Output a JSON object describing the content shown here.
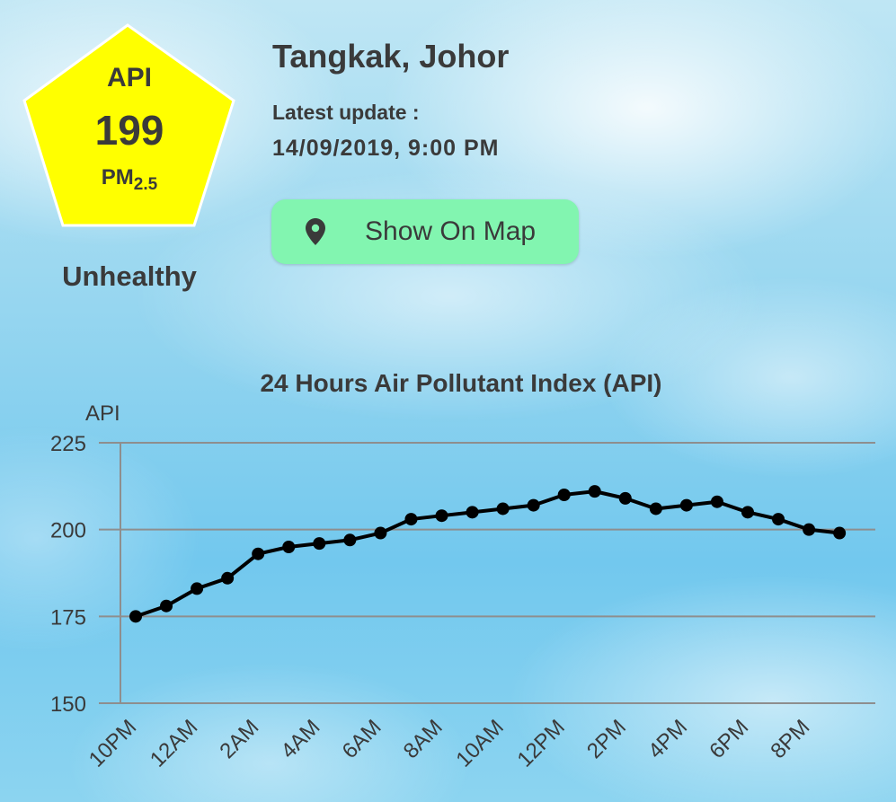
{
  "location": "Tangkak, Johor",
  "update_label": "Latest update :",
  "update_time": "14/09/2019, 9:00 PM",
  "badge": {
    "label": "API",
    "value": "199",
    "pollutant": "PM",
    "pollutant_sub": "2.5",
    "color": "#ffff00"
  },
  "status": "Unhealthy",
  "map_button": {
    "label": "Show On Map",
    "icon": "map-pin-icon",
    "color": "#82f5b0"
  },
  "chart_data": {
    "type": "line",
    "title": "24 Hours Air Pollutant Index (API)",
    "ylabel": "API",
    "xlabel": "",
    "ylim": [
      150,
      225
    ],
    "yticks": [
      150,
      175,
      200,
      225
    ],
    "grid": true,
    "x": [
      "10PM",
      "11PM",
      "12AM",
      "1AM",
      "2AM",
      "3AM",
      "4AM",
      "5AM",
      "6AM",
      "7AM",
      "8AM",
      "9AM",
      "10AM",
      "11AM",
      "12PM",
      "1PM",
      "2PM",
      "3PM",
      "4PM",
      "5PM",
      "6PM",
      "7PM",
      "8PM",
      "9PM"
    ],
    "xtick_labels": [
      "10PM",
      "12AM",
      "2AM",
      "4AM",
      "6AM",
      "8AM",
      "10AM",
      "12PM",
      "2PM",
      "4PM",
      "6PM",
      "8PM"
    ],
    "series": [
      {
        "values": [
          175,
          178,
          183,
          186,
          193,
          195,
          196,
          197,
          199,
          203,
          204,
          205,
          206,
          207,
          210,
          211,
          209,
          206,
          207,
          208,
          205,
          203,
          200,
          199
        ],
        "color": "#000000"
      }
    ]
  }
}
